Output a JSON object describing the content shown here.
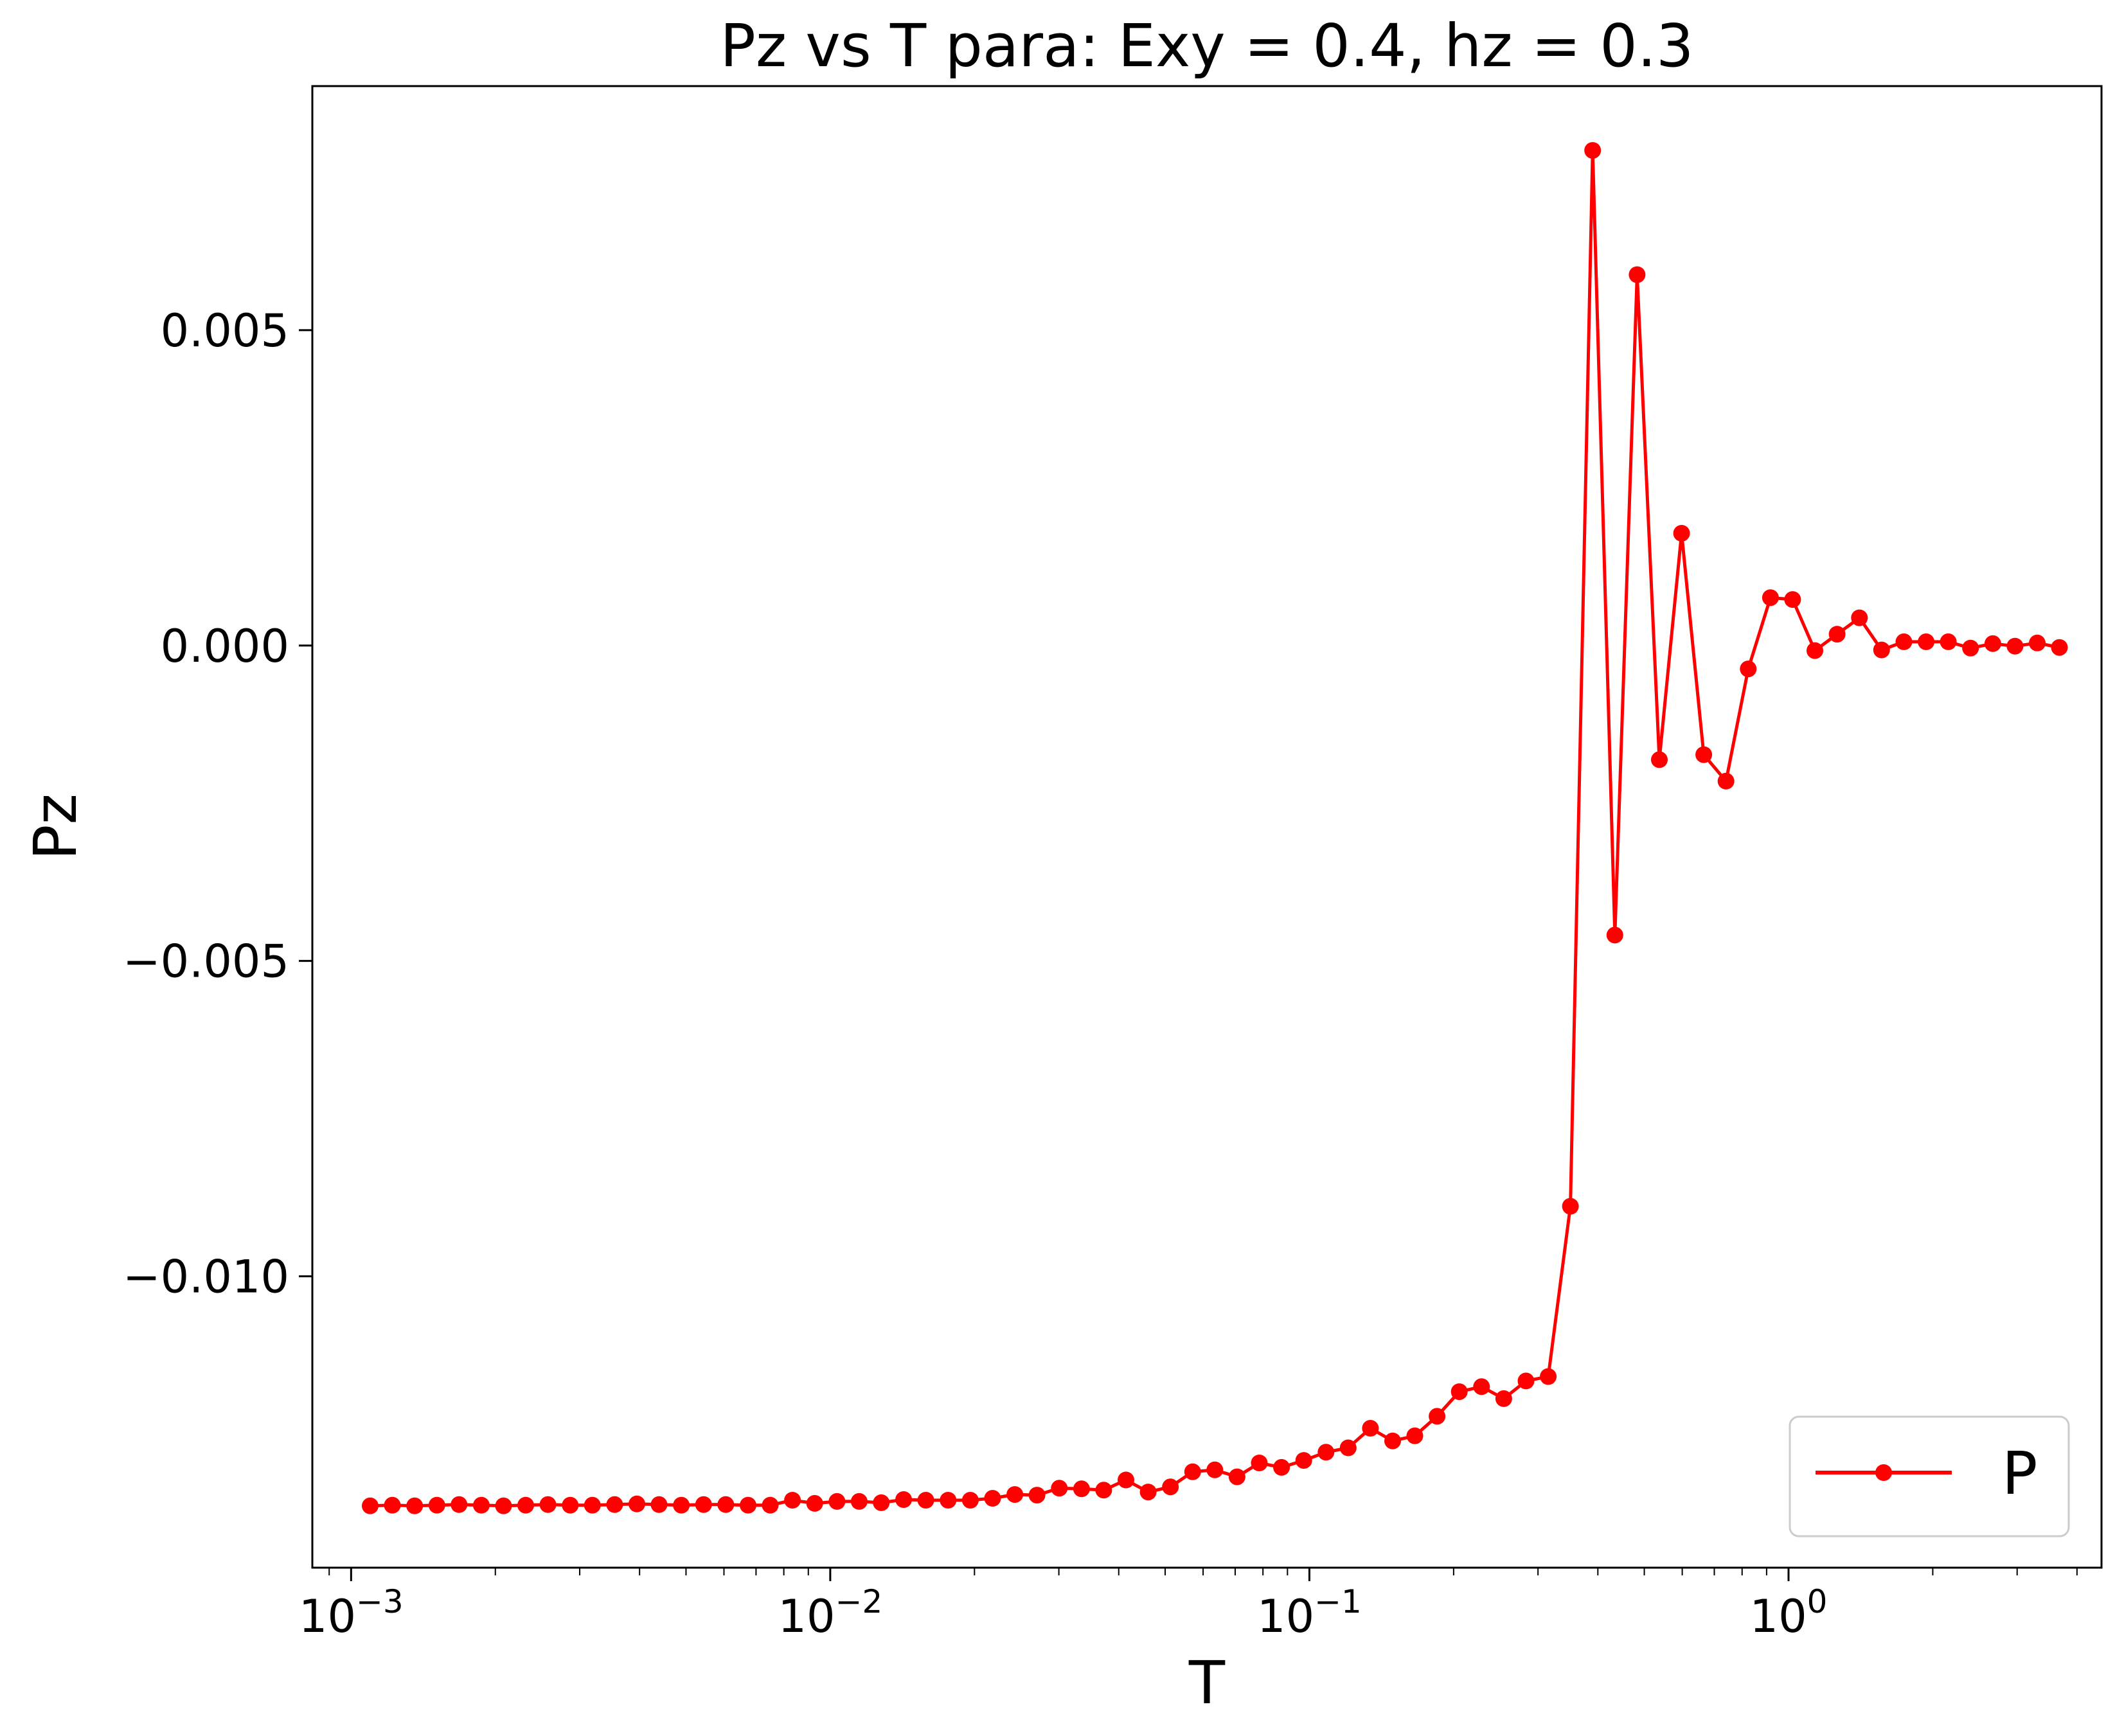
{
  "chart_data": {
    "type": "line",
    "title": "Pz vs T para: Exy = 0.4, hz = 0.3",
    "xlabel": "T",
    "ylabel": "Pz",
    "xscale": "log",
    "xlim": [
      0.00083,
      4.5
    ],
    "ylim": [
      -0.01462,
      0.00887
    ],
    "grid": false,
    "legend": {
      "location": "lower right",
      "entries": [
        "P"
      ]
    },
    "x_tick_labels": [
      {
        "value": 0.001,
        "base": "10",
        "exp": "−3"
      },
      {
        "value": 0.01,
        "base": "10",
        "exp": "−2"
      },
      {
        "value": 0.1,
        "base": "10",
        "exp": "−1"
      },
      {
        "value": 1,
        "base": "10",
        "exp": "0"
      }
    ],
    "y_tick_labels": [
      {
        "value": 0.005,
        "label": "0.005"
      },
      {
        "value": 0.0,
        "label": "0.000"
      },
      {
        "value": -0.005,
        "label": "−0.005"
      },
      {
        "value": -0.01,
        "label": "−0.010"
      }
    ],
    "series": [
      {
        "name": "P",
        "color": "#ff0000",
        "marker": "circle",
        "points": [
          [
            0.001096,
            -0.01364
          ],
          [
            0.001219,
            -0.01363
          ],
          [
            0.001357,
            -0.01364
          ],
          [
            0.00151,
            -0.01363
          ],
          [
            0.00168,
            -0.01362
          ],
          [
            0.00187,
            -0.01363
          ],
          [
            0.00208,
            -0.01364
          ],
          [
            0.002314,
            -0.01363
          ],
          [
            0.002575,
            -0.01362
          ],
          [
            0.002866,
            -0.01363
          ],
          [
            0.003189,
            -0.01363
          ],
          [
            0.003548,
            -0.01362
          ],
          [
            0.003948,
            -0.01361
          ],
          [
            0.004393,
            -0.01362
          ],
          [
            0.004889,
            -0.01363
          ],
          [
            0.00544,
            -0.01362
          ],
          [
            0.006053,
            -0.01362
          ],
          [
            0.006736,
            -0.01363
          ],
          [
            0.007495,
            -0.01363
          ],
          [
            0.00834,
            -0.01355
          ],
          [
            0.00928,
            -0.0136
          ],
          [
            0.01033,
            -0.01357
          ],
          [
            0.01149,
            -0.01357
          ],
          [
            0.01278,
            -0.01359
          ],
          [
            0.01423,
            -0.01354
          ],
          [
            0.01583,
            -0.01355
          ],
          [
            0.01762,
            -0.01355
          ],
          [
            0.01961,
            -0.01355
          ],
          [
            0.02182,
            -0.01352
          ],
          [
            0.02428,
            -0.01346
          ],
          [
            0.02701,
            -0.01347
          ],
          [
            0.03006,
            -0.01336
          ],
          [
            0.03345,
            -0.01337
          ],
          [
            0.03722,
            -0.01339
          ],
          [
            0.04141,
            -0.01323
          ],
          [
            0.04608,
            -0.01342
          ],
          [
            0.05128,
            -0.01334
          ],
          [
            0.05706,
            -0.0131
          ],
          [
            0.06349,
            -0.01307
          ],
          [
            0.07064,
            -0.01318
          ],
          [
            0.0786,
            -0.01296
          ],
          [
            0.08747,
            -0.01303
          ],
          [
            0.09733,
            -0.01292
          ],
          [
            0.1083,
            -0.01279
          ],
          [
            0.1205,
            -0.01272
          ],
          [
            0.1341,
            -0.01241
          ],
          [
            0.1492,
            -0.01261
          ],
          [
            0.166,
            -0.01253
          ],
          [
            0.1847,
            -0.01222
          ],
          [
            0.2055,
            -0.01183
          ],
          [
            0.2287,
            -0.01175
          ],
          [
            0.2545,
            -0.01194
          ],
          [
            0.2832,
            -0.01166
          ],
          [
            0.3151,
            -0.01159
          ],
          [
            0.3506,
            -0.00889
          ],
          [
            0.3901,
            0.00785
          ],
          [
            0.4341,
            -0.00459
          ],
          [
            0.483,
            0.00588
          ],
          [
            0.5375,
            -0.00181
          ],
          [
            0.5981,
            0.00178
          ],
          [
            0.6655,
            -0.00173
          ],
          [
            0.7405,
            -0.00215
          ],
          [
            0.824,
            -0.00037
          ],
          [
            0.9169,
            0.00076
          ],
          [
            1.02,
            0.00073
          ],
          [
            1.135,
            -8e-05
          ],
          [
            1.263,
            0.00018
          ],
          [
            1.406,
            0.00044
          ],
          [
            1.564,
            -7e-05
          ],
          [
            1.741,
            6e-05
          ],
          [
            1.937,
            6e-05
          ],
          [
            2.155,
            6e-05
          ],
          [
            2.398,
            -4e-05
          ],
          [
            2.669,
            3e-05
          ],
          [
            2.969,
            -1e-05
          ],
          [
            3.304,
            4e-05
          ],
          [
            3.676,
            -3e-05
          ]
        ]
      }
    ]
  }
}
